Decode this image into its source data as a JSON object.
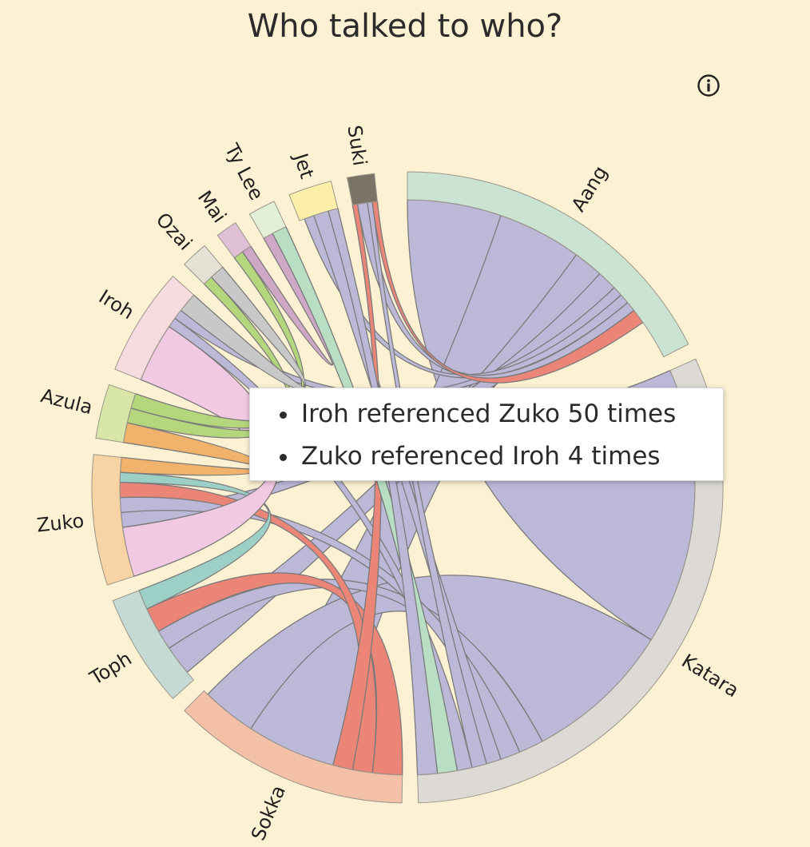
{
  "title": "Who talked to who?",
  "info_icon": "info-circle-icon",
  "tooltip": {
    "lines": [
      "Iroh referenced Zuko 50 times",
      "Zuko referenced Iroh 4 times"
    ]
  },
  "chart_data": {
    "type": "chord",
    "groups": [
      {
        "name": "Aang",
        "color": "#cbe3d3",
        "ribbon": "#bcb9d8",
        "start": 0,
        "end": 63
      },
      {
        "name": "Katara",
        "color": "#ddd9d4",
        "ribbon": "#bcb9d8",
        "start": 66,
        "end": 178
      },
      {
        "name": "Sokka",
        "color": "#f4c0a8",
        "ribbon": "#ea8577",
        "start": 181,
        "end": 225
      },
      {
        "name": "Toph",
        "color": "#c5dad5",
        "ribbon": "#9cd0c6",
        "start": 228,
        "end": 249
      },
      {
        "name": "Zuko",
        "color": "#f8d3a3",
        "ribbon": "#f1b26b",
        "start": 252,
        "end": 276
      },
      {
        "name": "Azula",
        "color": "#d8e7a7",
        "ribbon": "#b4d67c",
        "start": 279,
        "end": 289
      },
      {
        "name": "Iroh",
        "color": "#f7dcdf",
        "ribbon": "#f2c9e2",
        "start": 292,
        "end": 312
      },
      {
        "name": "Ozai",
        "color": "#e5e1d5",
        "ribbon": "#c8c8c8",
        "start": 315,
        "end": 320
      },
      {
        "name": "Mai",
        "color": "#dfc0d6",
        "ribbon": "#cfa8c8",
        "start": 323,
        "end": 327
      },
      {
        "name": "Ty Lee",
        "color": "#e3efd7",
        "ribbon": "#b8dfc3",
        "start": 330,
        "end": 335
      },
      {
        "name": "Jet",
        "color": "#fcefa9",
        "ribbon": "#bcb9d8",
        "start": 338,
        "end": 346
      },
      {
        "name": "Suki",
        "color": "#7b7466",
        "ribbon": "#ea8577",
        "start": 349,
        "end": 354
      }
    ],
    "chords": [
      {
        "source": "Aang",
        "target": "Katara",
        "sa": [
          0,
          19
        ],
        "ta": [
          66,
          122
        ]
      },
      {
        "source": "Aang",
        "target": "Sokka",
        "sa": [
          19,
          36
        ],
        "ta": [
          195,
          213
        ]
      },
      {
        "source": "Aang",
        "target": "Toph",
        "sa": [
          36,
          42
        ],
        "ta": [
          230,
          236
        ]
      },
      {
        "source": "Aang",
        "target": "Zuko",
        "sa": [
          42,
          46
        ],
        "ta": [
          262,
          265
        ]
      },
      {
        "source": "Aang",
        "target": "Iroh",
        "sa": [
          46,
          48
        ],
        "ta": [
          306,
          308
        ]
      },
      {
        "source": "Aang",
        "target": "Jet",
        "sa": [
          48,
          50
        ],
        "ta": [
          339,
          341
        ]
      },
      {
        "source": "Aang",
        "target": "Suki",
        "sa": [
          50,
          52
        ],
        "ta": [
          350,
          352
        ]
      },
      {
        "source": "Katara",
        "target": "Sokka",
        "sa": [
          122,
          152
        ],
        "ta": [
          213,
          224
        ]
      },
      {
        "source": "Katara",
        "target": "Toph",
        "sa": [
          152,
          157
        ],
        "ta": [
          236,
          240
        ]
      },
      {
        "source": "Katara",
        "target": "Zuko",
        "sa": [
          157,
          161
        ],
        "ta": [
          265,
          268
        ]
      },
      {
        "source": "Katara",
        "target": "Jet",
        "sa": [
          161,
          164
        ],
        "ta": [
          341,
          344
        ]
      },
      {
        "source": "Katara",
        "target": "Suki",
        "sa": [
          164,
          167
        ],
        "ta": [
          352,
          353
        ]
      },
      {
        "source": "Katara",
        "target": "Iroh",
        "sa": [
          167,
          170
        ],
        "ta": [
          304,
          306
        ]
      },
      {
        "source": "Sokka",
        "target": "Toph",
        "sa": [
          181,
          187
        ],
        "ta": [
          240,
          245
        ]
      },
      {
        "source": "Sokka",
        "target": "Zuko",
        "sa": [
          187,
          191
        ],
        "ta": [
          268,
          271
        ]
      },
      {
        "source": "Sokka",
        "target": "Suki",
        "sa": [
          191,
          195
        ],
        "ta": [
          349,
          350
        ]
      },
      {
        "source": "Toph",
        "target": "Zuko",
        "sa": [
          245,
          249
        ],
        "ta": [
          271,
          273
        ]
      },
      {
        "source": "Iroh",
        "target": "Zuko",
        "sa": [
          292,
          304
        ],
        "ta": [
          252,
          262
        ]
      },
      {
        "source": "Zuko",
        "target": "Azula",
        "sa": [
          273,
          276
        ],
        "ta": [
          279,
          283
        ]
      },
      {
        "source": "Azula",
        "target": "Ozai",
        "sa": [
          283,
          286
        ],
        "ta": [
          315,
          317
        ]
      },
      {
        "source": "Azula",
        "target": "Mai",
        "sa": [
          286,
          289
        ],
        "ta": [
          323,
          325
        ]
      },
      {
        "source": "Ozai",
        "target": "Iroh",
        "sa": [
          317,
          320
        ],
        "ta": [
          308,
          312
        ]
      },
      {
        "source": "Mai",
        "target": "Ty Lee",
        "sa": [
          325,
          327
        ],
        "ta": [
          330,
          332
        ]
      },
      {
        "source": "Ty Lee",
        "target": "Katara",
        "sa": [
          332,
          335
        ],
        "ta": [
          170,
          174
        ]
      },
      {
        "source": "Jet",
        "target": "Katara",
        "sa": [
          344,
          346
        ],
        "ta": [
          174,
          178
        ]
      },
      {
        "source": "Suki",
        "target": "Aang",
        "sa": [
          353,
          354
        ],
        "ta": [
          52,
          55
        ]
      }
    ]
  }
}
